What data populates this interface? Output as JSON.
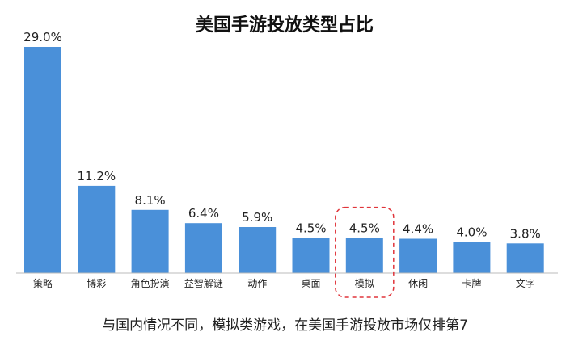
{
  "chart_data": {
    "type": "bar",
    "title": "美国手游投放类型占比",
    "categories": [
      "策略",
      "博彩",
      "角色扮演",
      "益智解谜",
      "动作",
      "桌面",
      "模拟",
      "休闲",
      "卡牌",
      "文字"
    ],
    "values": [
      29.0,
      11.2,
      8.1,
      6.4,
      5.9,
      4.5,
      4.5,
      4.4,
      4.0,
      3.8
    ],
    "value_labels": [
      "29.0%",
      "11.2%",
      "8.1%",
      "6.4%",
      "5.9%",
      "4.5%",
      "4.5%",
      "4.4%",
      "4.0%",
      "3.8%"
    ],
    "xlabel": "",
    "ylabel": "",
    "ylim": [
      0,
      29.0
    ],
    "grid": false,
    "legend": "none",
    "highlighted_category": "模拟",
    "colors": {
      "bar": "#4a90d9",
      "highlight_outline": "#e0353b",
      "axis": "#bbbbbb"
    }
  },
  "caption": "与国内情况不同，模拟类游戏，在美国手游投放市场仅排第7"
}
